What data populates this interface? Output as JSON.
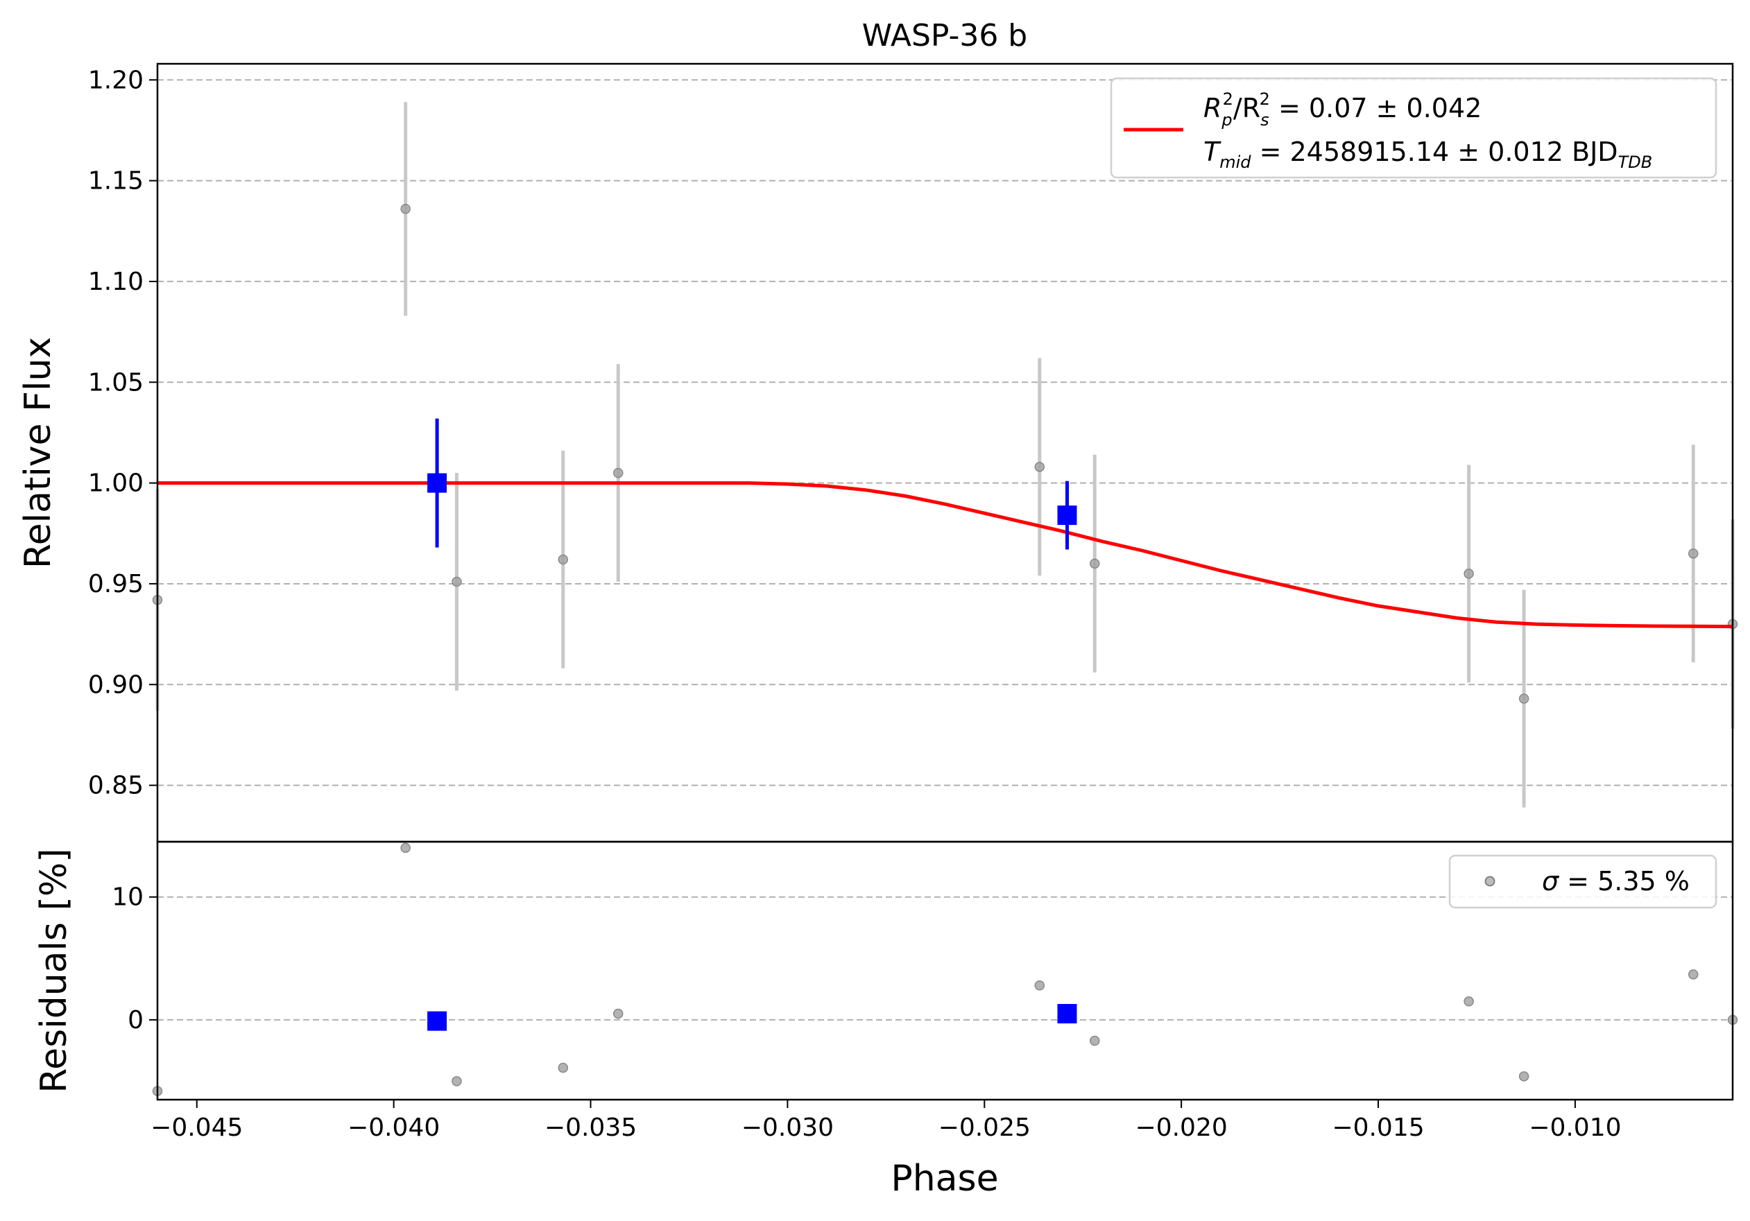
{
  "chart_data": {
    "type": "scatter",
    "title": "WASP-36 b",
    "xlabel": "Phase",
    "xlim": [
      -0.046,
      -0.006
    ],
    "xticks": [
      -0.045,
      -0.04,
      -0.035,
      -0.03,
      -0.025,
      -0.02,
      -0.015,
      -0.01
    ],
    "xtick_labels": [
      "−0.045",
      "−0.040",
      "−0.035",
      "−0.030",
      "−0.025",
      "−0.020",
      "−0.015",
      "−0.010"
    ],
    "top_panel": {
      "ylabel": "Relative Flux",
      "ylim": [
        0.822,
        1.208
      ],
      "yticks": [
        0.85,
        0.9,
        0.95,
        1.0,
        1.05,
        1.1,
        1.15,
        1.2
      ],
      "ytick_labels": [
        "0.85",
        "0.90",
        "0.95",
        "1.00",
        "1.05",
        "1.10",
        "1.15",
        "1.20"
      ],
      "grid": "horizontal dashed",
      "raw_points": {
        "color": "#808080",
        "x": [
          -0.046,
          -0.0397,
          -0.0384,
          -0.0357,
          -0.0343,
          -0.0236,
          -0.0222,
          -0.0127,
          -0.0113,
          -0.007,
          -0.006
        ],
        "y": [
          0.942,
          1.136,
          0.951,
          0.962,
          1.005,
          1.008,
          0.96,
          0.955,
          0.893,
          0.965,
          0.93
        ],
        "err": [
          0.055,
          0.053,
          0.054,
          0.054,
          0.054,
          0.054,
          0.054,
          0.054,
          0.054,
          0.054,
          0.052
        ]
      },
      "binned_points": {
        "color": "#0000ff",
        "x": [
          -0.0389,
          -0.0229
        ],
        "y": [
          1.0,
          0.984
        ],
        "err": [
          0.032,
          0.017
        ]
      },
      "model": {
        "color": "#ff0000",
        "x": [
          -0.046,
          -0.031,
          -0.03,
          -0.029,
          -0.028,
          -0.027,
          -0.026,
          -0.025,
          -0.024,
          -0.023,
          -0.022,
          -0.021,
          -0.02,
          -0.019,
          -0.018,
          -0.017,
          -0.016,
          -0.015,
          -0.014,
          -0.013,
          -0.012,
          -0.011,
          -0.01,
          -0.009,
          -0.008,
          -0.007,
          -0.006
        ],
        "y": [
          1.0,
          1.0,
          0.9995,
          0.9985,
          0.9965,
          0.9935,
          0.9895,
          0.985,
          0.9805,
          0.976,
          0.971,
          0.9665,
          0.9615,
          0.9565,
          0.952,
          0.9475,
          0.943,
          0.939,
          0.936,
          0.933,
          0.931,
          0.93,
          0.9295,
          0.9292,
          0.929,
          0.9289,
          0.9288
        ]
      },
      "legend": {
        "placement": "top-right",
        "line1": {
          "lhs": "R",
          "sub1": "p",
          "sup1": "2",
          "mid": "/R",
          "sub2": "s",
          "sup2": "2",
          "rhs": " = 0.07 ± 0.042"
        },
        "line2": {
          "lhs": "T",
          "sub1": "mid",
          "rhs": " = 2458915.14 ± 0.012 BJD",
          "sub2": "TDB"
        }
      }
    },
    "bottom_panel": {
      "ylabel": "Residuals [%]",
      "ylim": [
        -6.5,
        14.5
      ],
      "yticks": [
        0,
        10
      ],
      "ytick_labels": [
        "0",
        "10"
      ],
      "grid": "horizontal dashed",
      "raw_points": {
        "x": [
          -0.046,
          -0.0397,
          -0.0384,
          -0.0357,
          -0.0343,
          -0.0236,
          -0.0222,
          -0.0127,
          -0.0113,
          -0.007,
          -0.006
        ],
        "y": [
          -5.8,
          14.0,
          -5.0,
          -3.9,
          0.5,
          2.8,
          -1.7,
          1.5,
          -4.6,
          3.7,
          0.0
        ]
      },
      "binned_points": {
        "x": [
          -0.0389,
          -0.0229
        ],
        "y": [
          -0.1,
          0.5
        ]
      },
      "legend": {
        "placement": "top-right",
        "sigma_symbol": "σ",
        "text": " = 5.35 %"
      }
    }
  }
}
